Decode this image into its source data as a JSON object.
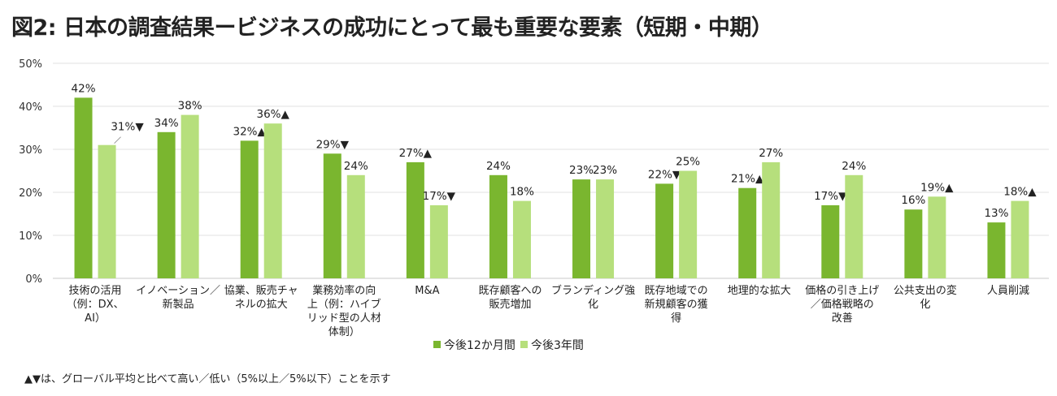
{
  "chart_data": {
    "type": "bar",
    "title": "図2: 日本の調査結果ービジネスの成功にとって最も重要な要素（短期・中期）",
    "ylim": [
      0,
      50
    ],
    "yticks": [
      "0%",
      "10%",
      "20%",
      "30%",
      "40%",
      "50%"
    ],
    "ytick_values": [
      0,
      10,
      20,
      30,
      40,
      50
    ],
    "grid": true,
    "legend_position": "bottom",
    "categories": [
      "技術の活用\n（例：DX、\nAI）",
      "イノベーション／\n新製品",
      "協業、販売チャ\nネルの拡大",
      "業務効率の向\n上（例：ハイブ\nリッド型の人材\n体制）",
      "M&A",
      "既存顧客への\n販売増加",
      "ブランディング強\n化",
      "既存地域での\n新規顧客の獲\n得",
      "地理的な拡大",
      "価格の引き上げ\n／価格戦略の\n改善",
      "公共支出の変\n化",
      "人員削減"
    ],
    "series": [
      {
        "name": "今後12か月間",
        "color": "#7ab62f",
        "values": [
          42,
          34,
          32,
          29,
          27,
          24,
          23,
          22,
          21,
          17,
          16,
          13
        ],
        "labels": [
          "42%",
          "34%",
          "32%▲",
          "29%▼",
          "27%▲",
          "24%",
          "23%",
          "22%▼",
          "21%▲",
          "17%▼",
          "16%",
          "13%"
        ]
      },
      {
        "name": "今後3年間",
        "color": "#b6df7c",
        "values": [
          31,
          38,
          36,
          24,
          17,
          18,
          23,
          25,
          27,
          24,
          19,
          18
        ],
        "labels": [
          "31%▼",
          "38%",
          "36%▲",
          "24%",
          "17%▼",
          "18%",
          "23%",
          "25%",
          "27%",
          "24%",
          "19%▲",
          "18%▲"
        ]
      }
    ],
    "note": "▲▼は、グローバル平均と比べて高い／低い（5%以上／5%以下）ことを示す"
  }
}
